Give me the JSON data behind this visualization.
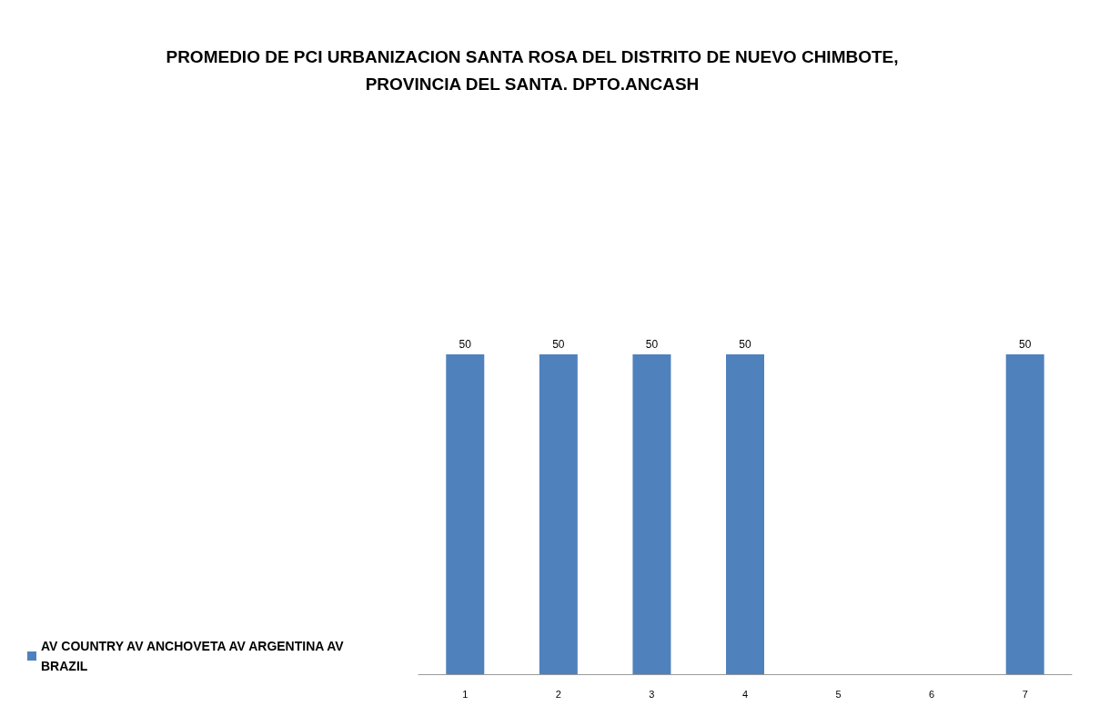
{
  "chart_data": {
    "type": "bar",
    "title": "PROMEDIO DE PCI URBANIZACION SANTA ROSA DEL DISTRITO DE NUEVO CHIMBOTE,\nPROVINCIA DEL SANTA. DPTO.ANCASH",
    "categories": [
      "1",
      "2",
      "3",
      "4",
      "5",
      "6",
      "7"
    ],
    "series": [
      {
        "name": "AV COUNTRY AV ANCHOVETA AV ARGENTINA AV BRAZIL",
        "color": "#4f81bd",
        "values": [
          50,
          50,
          50,
          50,
          null,
          null,
          50
        ]
      }
    ],
    "data_labels": true,
    "grid": false,
    "legend": "bottom left",
    "tick_labels": "x"
  }
}
